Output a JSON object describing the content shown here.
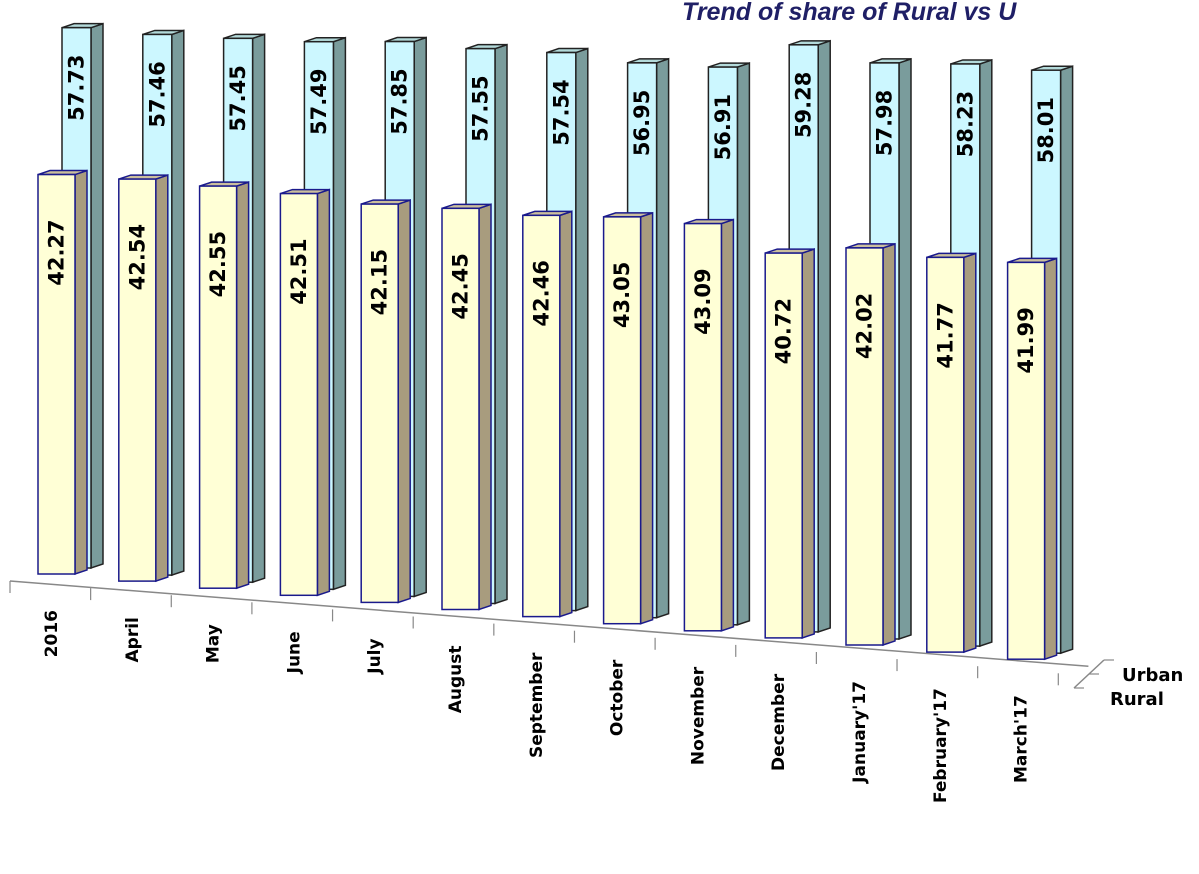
{
  "chart_data": {
    "type": "bar",
    "title": "Trend of  share of Rural vs U",
    "categories": [
      "2016",
      "April",
      "May",
      "June",
      "July",
      "August",
      "September",
      "October",
      "November",
      "December",
      "January'17",
      "February'17",
      "March'17"
    ],
    "series": [
      {
        "name": "Urban",
        "values": [
          57.73,
          57.46,
          57.45,
          57.49,
          57.85,
          57.55,
          57.54,
          56.95,
          56.91,
          59.28,
          57.98,
          58.23,
          58.01
        ]
      },
      {
        "name": "Rural",
        "values": [
          42.27,
          42.54,
          42.55,
          42.51,
          42.15,
          42.45,
          42.46,
          43.05,
          43.09,
          40.72,
          42.02,
          41.77,
          41.99
        ]
      }
    ],
    "legend": "depth-axis-right",
    "grid": false
  },
  "colors": {
    "urban_front": "#ccf7ff",
    "urban_side": "#7a9c9c",
    "urban_top": "#b3dada",
    "urban_stroke": "#222222",
    "rural_front": "#ffffd6",
    "rural_side": "#a89c7e",
    "rural_top": "#cbbf9d",
    "rural_stroke": "#1a1a8c"
  }
}
